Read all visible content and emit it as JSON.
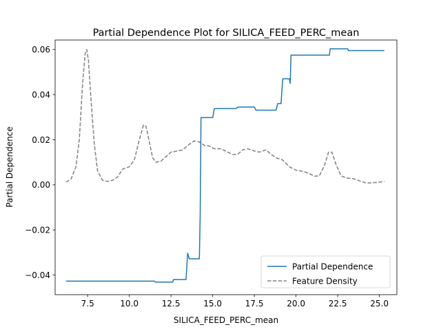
{
  "chart_data": {
    "type": "line",
    "title": "Partial Dependence Plot for SILICA_FEED_PERC_mean",
    "xlabel": "SILICA_FEED_PERC_mean",
    "ylabel": "Partial Dependence",
    "xlim": [
      5.55,
      26.05
    ],
    "ylim": [
      -0.0487,
      0.0642
    ],
    "x_ticks": [
      7.5,
      10.0,
      12.5,
      15.0,
      17.5,
      20.0,
      22.5,
      25.0
    ],
    "x_tick_labels": [
      "7.5",
      "10.0",
      "12.5",
      "15.0",
      "17.5",
      "20.0",
      "22.5",
      "25.0"
    ],
    "y_ticks": [
      -0.04,
      -0.02,
      0.0,
      0.02,
      0.04,
      0.06
    ],
    "y_tick_labels": [
      "−0.04",
      "−0.02",
      "0.00",
      "0.02",
      "0.04",
      "0.06"
    ],
    "grid": false,
    "legend_position": "lower-right",
    "series": [
      {
        "name": "Partial Dependence",
        "color": "#1f77b4",
        "style": "solid",
        "points": [
          [
            6.2,
            -0.0427
          ],
          [
            11.5,
            -0.0427
          ],
          [
            11.55,
            -0.0431
          ],
          [
            12.6,
            -0.0431
          ],
          [
            12.65,
            -0.042
          ],
          [
            13.4,
            -0.042
          ],
          [
            13.5,
            -0.0303
          ],
          [
            13.6,
            -0.0328
          ],
          [
            14.2,
            -0.0328
          ],
          [
            14.25,
            -0.014
          ],
          [
            14.3,
            0.0298
          ],
          [
            15.0,
            0.0298
          ],
          [
            15.1,
            0.0338
          ],
          [
            16.4,
            0.0338
          ],
          [
            16.5,
            0.0345
          ],
          [
            17.5,
            0.0345
          ],
          [
            17.6,
            0.0331
          ],
          [
            18.8,
            0.0331
          ],
          [
            18.9,
            0.036
          ],
          [
            19.1,
            0.036
          ],
          [
            19.2,
            0.047
          ],
          [
            19.6,
            0.047
          ],
          [
            19.65,
            0.045
          ],
          [
            19.7,
            0.0575
          ],
          [
            22.0,
            0.0575
          ],
          [
            22.05,
            0.0603
          ],
          [
            23.1,
            0.0603
          ],
          [
            23.15,
            0.0595
          ],
          [
            25.3,
            0.0595
          ]
        ]
      },
      {
        "name": "Feature Density",
        "color": "#808080",
        "style": "dashed",
        "points": [
          [
            6.2,
            0.0012
          ],
          [
            6.5,
            0.0025
          ],
          [
            6.8,
            0.008
          ],
          [
            7.0,
            0.02
          ],
          [
            7.2,
            0.045
          ],
          [
            7.35,
            0.058
          ],
          [
            7.45,
            0.06
          ],
          [
            7.55,
            0.055
          ],
          [
            7.7,
            0.038
          ],
          [
            7.9,
            0.018
          ],
          [
            8.1,
            0.006
          ],
          [
            8.4,
            0.002
          ],
          [
            8.7,
            0.0015
          ],
          [
            9.0,
            0.002
          ],
          [
            9.3,
            0.0035
          ],
          [
            9.6,
            0.007
          ],
          [
            10.0,
            0.008
          ],
          [
            10.3,
            0.011
          ],
          [
            10.6,
            0.02
          ],
          [
            10.85,
            0.0265
          ],
          [
            11.0,
            0.026
          ],
          [
            11.2,
            0.019
          ],
          [
            11.4,
            0.012
          ],
          [
            11.6,
            0.01
          ],
          [
            11.9,
            0.0105
          ],
          [
            12.2,
            0.0125
          ],
          [
            12.5,
            0.0145
          ],
          [
            12.9,
            0.015
          ],
          [
            13.2,
            0.0155
          ],
          [
            13.6,
            0.018
          ],
          [
            13.9,
            0.0195
          ],
          [
            14.2,
            0.019
          ],
          [
            14.5,
            0.0175
          ],
          [
            14.8,
            0.0172
          ],
          [
            15.1,
            0.016
          ],
          [
            15.5,
            0.016
          ],
          [
            15.9,
            0.0145
          ],
          [
            16.2,
            0.0135
          ],
          [
            16.5,
            0.0135
          ],
          [
            16.8,
            0.0155
          ],
          [
            17.1,
            0.016
          ],
          [
            17.5,
            0.015
          ],
          [
            17.8,
            0.0145
          ],
          [
            18.2,
            0.0155
          ],
          [
            18.5,
            0.0135
          ],
          [
            18.8,
            0.012
          ],
          [
            19.2,
            0.011
          ],
          [
            19.6,
            0.008
          ],
          [
            20.0,
            0.0065
          ],
          [
            20.4,
            0.006
          ],
          [
            20.8,
            0.005
          ],
          [
            21.1,
            0.0038
          ],
          [
            21.4,
            0.004
          ],
          [
            21.7,
            0.0085
          ],
          [
            21.95,
            0.0145
          ],
          [
            22.15,
            0.0145
          ],
          [
            22.4,
            0.009
          ],
          [
            22.7,
            0.004
          ],
          [
            23.0,
            0.003
          ],
          [
            23.4,
            0.0028
          ],
          [
            23.8,
            0.0018
          ],
          [
            24.2,
            0.0008
          ],
          [
            24.6,
            0.0009
          ],
          [
            25.0,
            0.0012
          ],
          [
            25.3,
            0.0015
          ]
        ]
      }
    ]
  }
}
